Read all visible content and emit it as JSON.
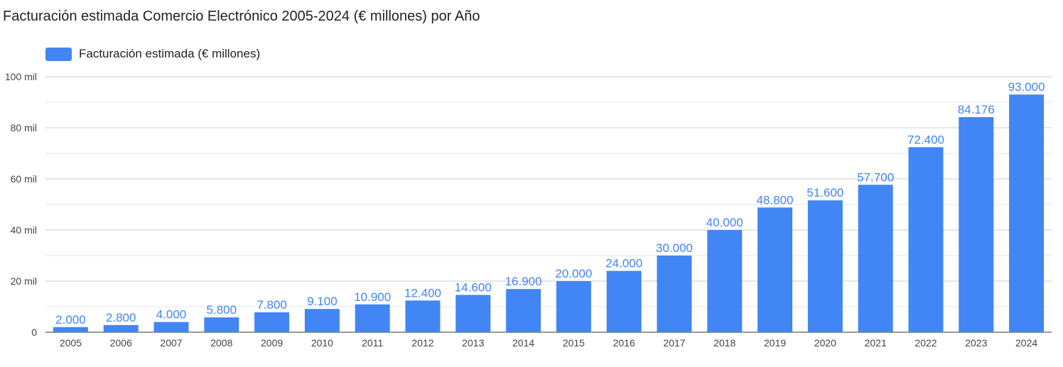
{
  "chart_data": {
    "type": "bar",
    "title": "Facturación estimada Comercio Electrónico 2005-2024 (€ millones) por Año",
    "xlabel": "",
    "ylabel": "",
    "categories": [
      "2005",
      "2006",
      "2007",
      "2008",
      "2009",
      "2010",
      "2011",
      "2012",
      "2013",
      "2014",
      "2015",
      "2016",
      "2017",
      "2018",
      "2019",
      "2020",
      "2021",
      "2022",
      "2023",
      "2024"
    ],
    "series": [
      {
        "name": "Facturación estimada (€ millones)",
        "color": "#4285f4",
        "values": [
          2000,
          2800,
          4000,
          5800,
          7800,
          9100,
          10900,
          12400,
          14600,
          16900,
          20000,
          24000,
          30000,
          40000,
          48800,
          51600,
          57700,
          72400,
          84176,
          93000
        ],
        "data_labels": [
          "2.000",
          "2.800",
          "4.000",
          "5.800",
          "7.800",
          "9.100",
          "10.900",
          "12.400",
          "14.600",
          "16.900",
          "20.000",
          "24.000",
          "30.000",
          "40.000",
          "48.800",
          "51.600",
          "57.700",
          "72.400",
          "84.176",
          "93.000"
        ]
      }
    ],
    "ylim": [
      0,
      100000
    ],
    "y_ticks": [
      {
        "value": 0,
        "label": "0"
      },
      {
        "value": 20000,
        "label": "20 mil"
      },
      {
        "value": 40000,
        "label": "40 mil"
      },
      {
        "value": 60000,
        "label": "60 mil"
      },
      {
        "value": 80000,
        "label": "80 mil"
      },
      {
        "value": 100000,
        "label": "100 mil"
      }
    ],
    "minor_gridlines": [
      10000,
      30000,
      50000,
      70000,
      90000
    ],
    "grid": true,
    "legend_position": "top-left",
    "label_color": "#4285f4",
    "grid_color": "#cccccc"
  }
}
